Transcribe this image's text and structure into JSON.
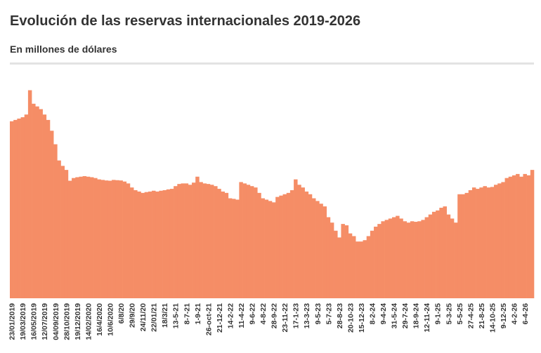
{
  "chart_data": {
    "type": "bar",
    "title": "Evolución de las reservas internacionales 2019-2026",
    "subtitle": "En millones de dólares",
    "color": "#f58d66",
    "ylim": [
      0,
      80000
    ],
    "categories": [
      "23/01/2019",
      null,
      null,
      "19/03/2019",
      null,
      null,
      "16/05/2019",
      null,
      null,
      "12/07/2019",
      null,
      null,
      "04/09/2019",
      null,
      null,
      "28/10/2019",
      null,
      null,
      "19/12/2019",
      null,
      null,
      "14/02/2020",
      null,
      null,
      "16/4/2020",
      null,
      null,
      "10/6/2020",
      null,
      null,
      "6/8/20",
      null,
      null,
      "29/9/20",
      null,
      null,
      "24/11/20",
      null,
      null,
      "22/01/21",
      null,
      null,
      "18/3/21",
      null,
      null,
      "13-5-21",
      null,
      null,
      "8-7-21",
      null,
      null,
      "1-9-21",
      null,
      null,
      "26-oct-21",
      null,
      null,
      "21-12-21",
      null,
      null,
      "14-2-22",
      null,
      null,
      "11-4-22",
      null,
      null,
      "9-6-22",
      null,
      null,
      "4-8-22",
      null,
      null,
      "28-9-22",
      null,
      null,
      "23-11-22",
      null,
      null,
      "17-1-23",
      null,
      null,
      "13-3-23",
      null,
      null,
      "9-5-23",
      null,
      null,
      "5-7-23",
      null,
      null,
      "28-8-23",
      null,
      null,
      "20-10-23",
      null,
      null,
      "15-12-23",
      null,
      null,
      "8-2-24",
      null,
      null,
      "9-4-24",
      null,
      null,
      "31-5-24",
      null,
      null,
      "29-7-24",
      null,
      null,
      "18-9-24",
      null,
      null,
      "12-11-24",
      null,
      null,
      "9-1-25",
      null,
      null,
      "5-3-25",
      null,
      null,
      "5-5-25",
      null,
      null,
      "27-4-25",
      null,
      null,
      "21-8-25",
      null,
      null,
      "14-10-25",
      null,
      null,
      "9-12-25",
      null,
      null,
      "4-2-26",
      null,
      null,
      "6-4-26",
      null,
      null
    ],
    "values": [
      65500,
      66000,
      66500,
      67000,
      68000,
      77000,
      72000,
      71000,
      70000,
      68000,
      66000,
      62000,
      57000,
      51000,
      49000,
      47500,
      43500,
      44500,
      44800,
      45000,
      45200,
      45000,
      44800,
      44500,
      44000,
      43800,
      43600,
      43500,
      43800,
      43700,
      43600,
      43200,
      42500,
      41000,
      40000,
      39500,
      39000,
      39300,
      39500,
      39800,
      39500,
      39800,
      40000,
      40300,
      40500,
      41500,
      42300,
      42500,
      42500,
      42000,
      42800,
      45000,
      43000,
      42500,
      42300,
      42000,
      41500,
      40500,
      39500,
      39000,
      37000,
      36800,
      36500,
      43000,
      42500,
      42000,
      41500,
      41000,
      39000,
      37000,
      36500,
      36000,
      35500,
      37500,
      38000,
      38500,
      39000,
      40000,
      44000,
      42000,
      41000,
      39500,
      38500,
      37000,
      36000,
      35000,
      34000,
      30000,
      28000,
      25000,
      22500,
      27500,
      27000,
      24000,
      23000,
      21000,
      21000,
      21500,
      23000,
      25000,
      26500,
      27500,
      28500,
      29000,
      29500,
      30000,
      30500,
      29500,
      28500,
      28000,
      28500,
      28300,
      28500,
      29000,
      30000,
      31000,
      32000,
      32500,
      33500,
      34000,
      31000,
      29500,
      28000,
      38500,
      38500,
      39000,
      40000,
      41000,
      40500,
      41000,
      41500,
      41000,
      41200,
      42000,
      42500,
      43000,
      44500,
      45000,
      45500,
      46000,
      45000,
      46000,
      45500,
      47500
    ]
  }
}
